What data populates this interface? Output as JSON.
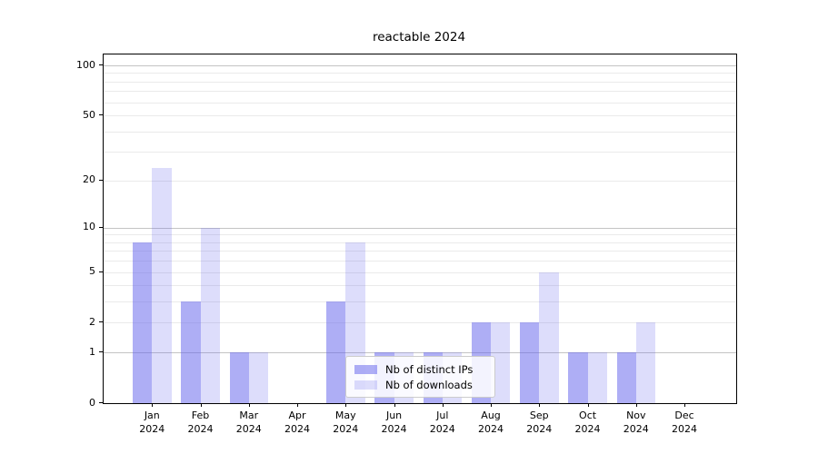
{
  "chart_data": {
    "type": "bar",
    "title": "reactable 2024",
    "categories": [
      "Jan 2024",
      "Feb 2024",
      "Mar 2024",
      "Apr 2024",
      "May 2024",
      "Jun 2024",
      "Jul 2024",
      "Aug 2024",
      "Sep 2024",
      "Oct 2024",
      "Nov 2024",
      "Dec 2024"
    ],
    "series": [
      {
        "name": "Nb of distinct IPs",
        "color": "rgba(100,100,235,0.52)",
        "values": [
          8,
          3,
          1,
          0,
          3,
          1,
          1,
          2,
          2,
          1,
          1,
          0
        ]
      },
      {
        "name": "Nb of downloads",
        "color": "rgba(100,100,235,0.22)",
        "values": [
          24,
          10,
          1,
          0,
          8,
          1,
          1,
          2,
          5,
          1,
          2,
          0
        ]
      }
    ],
    "yscale": "log1p",
    "yticks": [
      0,
      1,
      2,
      5,
      10,
      20,
      50,
      100
    ],
    "grid": {
      "major": [
        1,
        10,
        100
      ],
      "minor": [
        2,
        3,
        4,
        5,
        6,
        7,
        8,
        9,
        20,
        30,
        40,
        50,
        60,
        70,
        80,
        90
      ]
    },
    "ylim": [
      0,
      118
    ],
    "legend_position": "lower center",
    "grid_on": true
  }
}
